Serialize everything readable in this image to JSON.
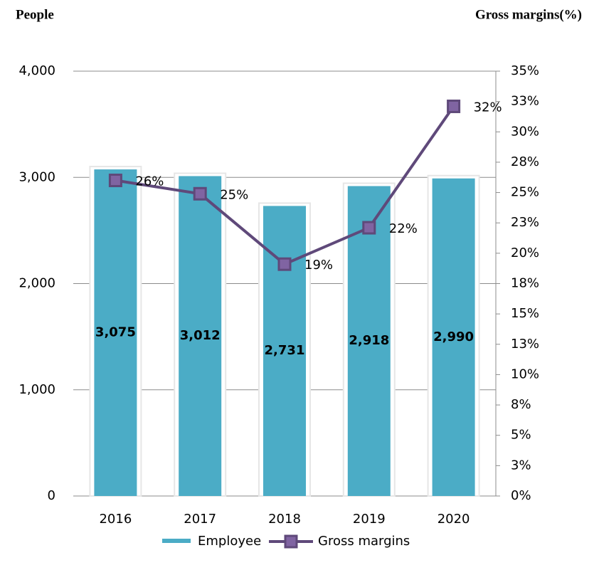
{
  "chart_data": {
    "type": "bar",
    "y_label": "People",
    "y2_label": "Gross margins(%)",
    "categories": [
      "2016",
      "2017",
      "2018",
      "2019",
      "2020"
    ],
    "series": [
      {
        "name": "Employee",
        "type": "bar",
        "color": "#4bacc6",
        "axis": "y",
        "values": [
          3075,
          3012,
          2731,
          2918,
          2990
        ],
        "value_labels": [
          "3,075",
          "3,012",
          "2,731",
          "2,918",
          "2,990"
        ]
      },
      {
        "name": "Gross margins",
        "type": "line",
        "color": "#5f497a",
        "marker_color": "#8064a2",
        "axis": "y2",
        "values": [
          26,
          24.9,
          19.1,
          22.1,
          32.1
        ],
        "value_labels": [
          "26%",
          "25%",
          "19%",
          "22%",
          "32%"
        ]
      }
    ],
    "ylim": [
      0,
      4000
    ],
    "yticks": [
      0,
      {
        "value": 1000,
        "label": "1,000"
      },
      {
        "value": 2000,
        "label": "2,000"
      },
      {
        "value": 3000,
        "label": "3,000"
      },
      {
        "value": 4000,
        "label": "4,000"
      }
    ],
    "y2lim": [
      0,
      35
    ],
    "y2ticks": [
      {
        "value": 0,
        "label": "0%"
      },
      {
        "value": 2.5,
        "label": "3%"
      },
      {
        "value": 5,
        "label": "5%"
      },
      {
        "value": 7.5,
        "label": "8%"
      },
      {
        "value": 10,
        "label": "10%"
      },
      {
        "value": 12.5,
        "label": "13%"
      },
      {
        "value": 15,
        "label": "15%"
      },
      {
        "value": 17.5,
        "label": "18%"
      },
      {
        "value": 20,
        "label": "20%"
      },
      {
        "value": 22.5,
        "label": "23%"
      },
      {
        "value": 25,
        "label": "25%"
      },
      {
        "value": 27.5,
        "label": "28%"
      },
      {
        "value": 30,
        "label": "30%"
      },
      {
        "value": 32.5,
        "label": "33%"
      },
      {
        "value": 35,
        "label": "35%"
      }
    ],
    "grid": true
  }
}
